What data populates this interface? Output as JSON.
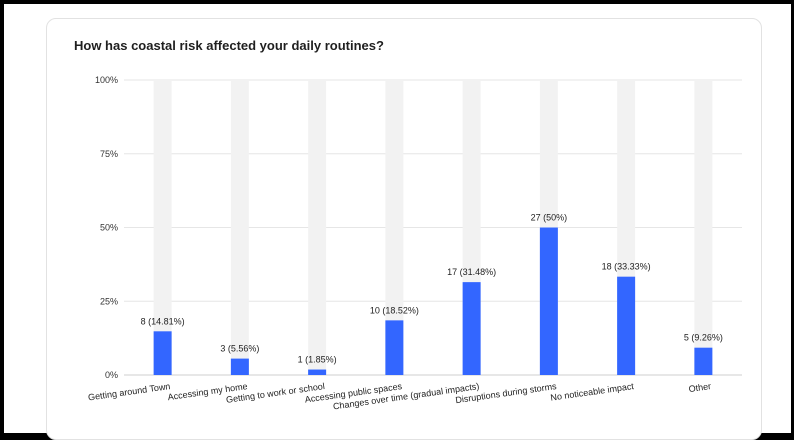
{
  "title": "How has coastal risk affected your daily routines?",
  "chart_data": {
    "type": "bar",
    "title": "How has coastal risk affected your daily routines?",
    "categories": [
      "Getting around Town",
      "Accessing my home",
      "Getting to work or school",
      "Accessing public spaces",
      "Changes over time (gradual impacts)",
      "Disruptions during storms",
      "No noticeable impact",
      "Other"
    ],
    "counts": [
      8,
      3,
      1,
      10,
      17,
      27,
      18,
      5
    ],
    "values": [
      14.81,
      5.56,
      1.85,
      18.52,
      31.48,
      50,
      33.33,
      9.26
    ],
    "data_labels": [
      "8 (14.81%)",
      "3 (5.56%)",
      "1 (1.85%)",
      "10 (18.52%)",
      "17 (31.48%)",
      "27 (50%)",
      "18 (33.33%)",
      "5 (9.26%)"
    ],
    "yticks": [
      "0%",
      "25%",
      "50%",
      "75%",
      "100%"
    ],
    "ylim": [
      0,
      100
    ],
    "grid": true,
    "colors": {
      "bar": "#3366ff",
      "track": "#f2f2f2",
      "grid": "#e6e6e6"
    }
  }
}
